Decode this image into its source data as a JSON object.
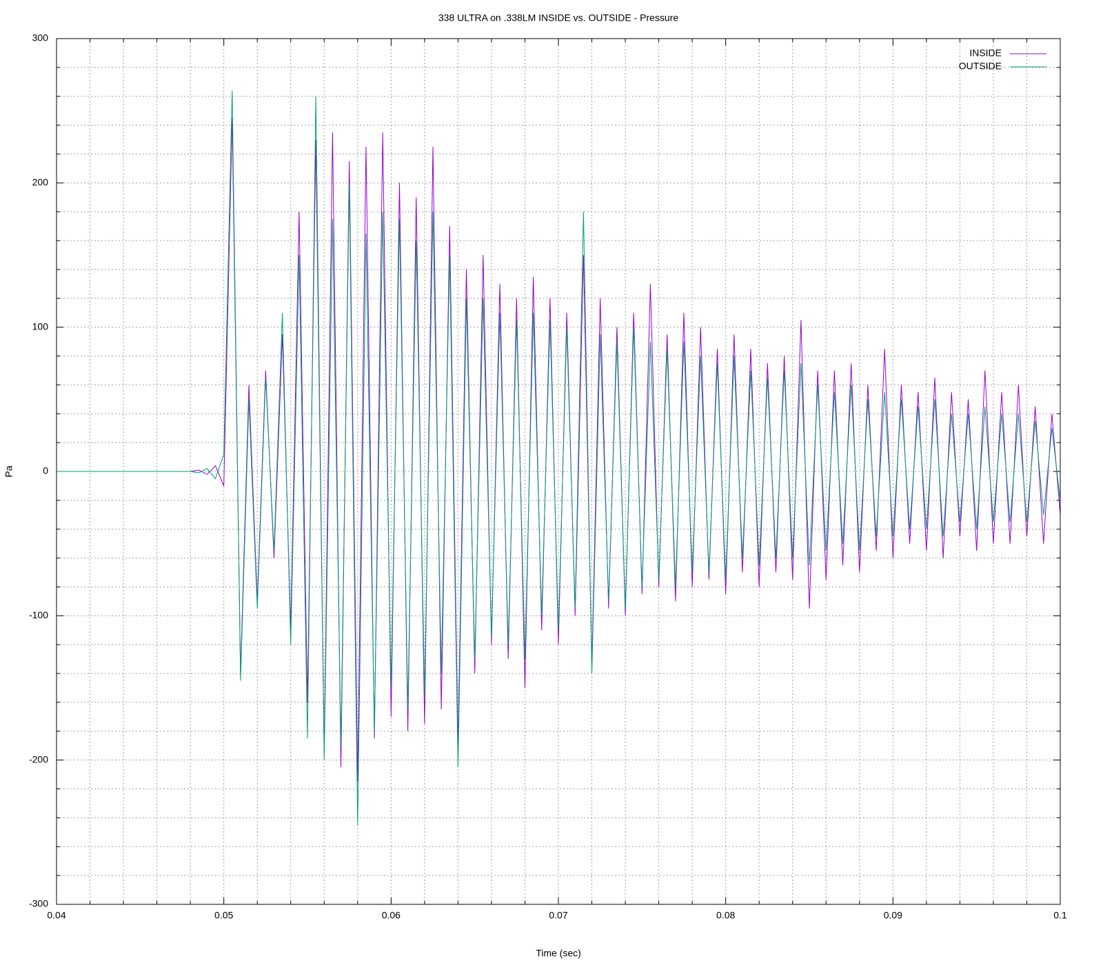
{
  "chart_data": {
    "type": "line",
    "title": "338 ULTRA on .338LM INSIDE vs. OUTSIDE - Pressure",
    "x_label": "Time (sec)",
    "y_label": "Pa",
    "x": [
      0.04,
      0.0405,
      0.041,
      0.0415,
      0.042,
      0.0425,
      0.043,
      0.0435,
      0.044,
      0.0445,
      0.045,
      0.0455,
      0.046,
      0.0465,
      0.047,
      0.0475,
      0.048,
      0.0485,
      0.049,
      0.0495,
      0.05,
      0.0505,
      0.051,
      0.0515,
      0.052,
      0.0525,
      0.053,
      0.0535,
      0.054,
      0.0545,
      0.055,
      0.0555,
      0.056,
      0.0565,
      0.057,
      0.0575,
      0.058,
      0.0585,
      0.059,
      0.0595,
      0.06,
      0.0605,
      0.061,
      0.0615,
      0.062,
      0.0625,
      0.063,
      0.0635,
      0.064,
      0.0645,
      0.065,
      0.0655,
      0.066,
      0.0665,
      0.067,
      0.0675,
      0.068,
      0.0685,
      0.069,
      0.0695,
      0.07,
      0.0705,
      0.071,
      0.0715,
      0.072,
      0.0725,
      0.073,
      0.0735,
      0.074,
      0.0745,
      0.075,
      0.0755,
      0.076,
      0.0765,
      0.077,
      0.0775,
      0.078,
      0.0785,
      0.079,
      0.0795,
      0.08,
      0.0805,
      0.081,
      0.0815,
      0.082,
      0.0825,
      0.083,
      0.0835,
      0.084,
      0.0845,
      0.085,
      0.0855,
      0.086,
      0.0865,
      0.087,
      0.0875,
      0.088,
      0.0885,
      0.089,
      0.0895,
      0.09,
      0.0905,
      0.091,
      0.0915,
      0.092,
      0.0925,
      0.093,
      0.0935,
      0.094,
      0.0945,
      0.095,
      0.0955,
      0.096,
      0.0965,
      0.097,
      0.0975,
      0.098,
      0.0985,
      0.099,
      0.0995,
      0.1
    ],
    "series": [
      {
        "name": "INSIDE",
        "color": "#9400d3",
        "values": [
          0,
          0,
          0,
          0,
          0,
          0,
          0,
          0,
          0,
          0,
          0,
          0,
          0,
          0,
          0,
          0,
          0,
          1,
          -2,
          4,
          -10,
          245,
          -140,
          60,
          -90,
          70,
          -60,
          95,
          -110,
          180,
          -160,
          230,
          -195,
          235,
          -205,
          215,
          -215,
          225,
          -185,
          235,
          -170,
          200,
          -180,
          190,
          -175,
          225,
          -165,
          170,
          -190,
          140,
          -140,
          150,
          -120,
          130,
          -130,
          120,
          -150,
          135,
          -110,
          120,
          -120,
          110,
          -100,
          150,
          -135,
          120,
          -95,
          100,
          -100,
          110,
          -85,
          130,
          -80,
          95,
          -90,
          110,
          -80,
          100,
          -75,
          85,
          -85,
          95,
          -70,
          85,
          -80,
          75,
          -70,
          80,
          -75,
          105,
          -95,
          70,
          -75,
          70,
          -65,
          75,
          -70,
          60,
          -55,
          85,
          -60,
          60,
          -50,
          55,
          -55,
          65,
          -60,
          55,
          -45,
          50,
          -55,
          70,
          -50,
          55,
          -50,
          60,
          -45,
          45,
          -50,
          40,
          -30
        ]
      },
      {
        "name": "OUTSIDE",
        "color": "#009e73",
        "values": [
          0,
          0,
          0,
          0,
          0,
          0,
          0,
          0,
          0,
          0,
          0,
          0,
          0,
          0,
          0,
          0,
          0,
          -1,
          2,
          -5,
          12,
          264,
          -145,
          50,
          -95,
          65,
          -55,
          110,
          -120,
          150,
          -185,
          260,
          -200,
          175,
          -190,
          200,
          -245,
          165,
          -180,
          180,
          -150,
          175,
          -165,
          160,
          -155,
          180,
          -140,
          150,
          -205,
          120,
          -130,
          120,
          -115,
          110,
          -120,
          105,
          -130,
          110,
          -100,
          105,
          -110,
          100,
          -95,
          180,
          -140,
          95,
          -90,
          90,
          -95,
          100,
          -80,
          90,
          -75,
          85,
          -80,
          90,
          -70,
          80,
          -70,
          75,
          -75,
          80,
          -60,
          70,
          -65,
          65,
          -60,
          70,
          -60,
          75,
          -65,
          60,
          -55,
          55,
          -50,
          60,
          -55,
          50,
          -45,
          55,
          -45,
          50,
          -40,
          45,
          -40,
          50,
          -45,
          40,
          -35,
          40,
          -40,
          45,
          -35,
          40,
          -35,
          40,
          -35,
          35,
          -30,
          30,
          -20
        ]
      }
    ],
    "xlim": [
      0.04,
      0.1
    ],
    "ylim": [
      -300,
      300
    ],
    "xticks": [
      0.04,
      0.05,
      0.06,
      0.07,
      0.08,
      0.09,
      0.1
    ],
    "yticks": [
      -300,
      -200,
      -100,
      0,
      100,
      200,
      300
    ],
    "xminorticks": [
      0.042,
      0.044,
      0.046,
      0.048,
      0.052,
      0.054,
      0.056,
      0.058,
      0.062,
      0.064,
      0.066,
      0.068,
      0.072,
      0.074,
      0.076,
      0.078,
      0.082,
      0.084,
      0.086,
      0.088,
      0.092,
      0.094,
      0.096,
      0.098
    ],
    "yminorticks": [
      -280,
      -260,
      -240,
      -220,
      -180,
      -160,
      -140,
      -120,
      -80,
      -60,
      -40,
      -20,
      20,
      40,
      60,
      80,
      120,
      140,
      160,
      180,
      220,
      240,
      260,
      280
    ],
    "grid": true,
    "legend": "top-right"
  }
}
